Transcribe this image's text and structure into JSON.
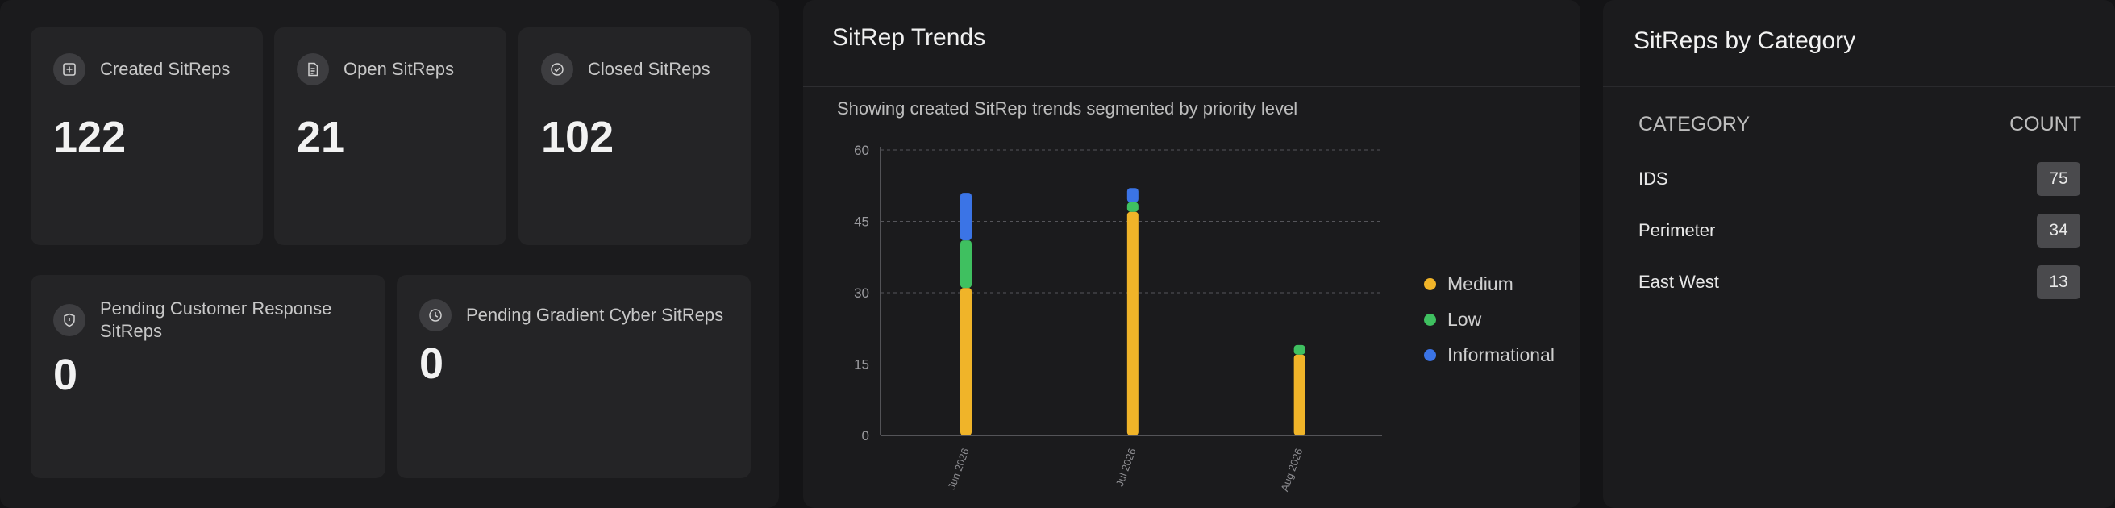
{
  "stats": {
    "created": {
      "label": "Created SitReps",
      "value": "122",
      "icon": "plus-square-icon"
    },
    "open": {
      "label": "Open SitReps",
      "value": "21",
      "icon": "document-icon"
    },
    "closed": {
      "label": "Closed SitReps",
      "value": "102",
      "icon": "check-circle-icon"
    },
    "pending_customer": {
      "label": "Pending Customer Response SitReps",
      "value": "0",
      "icon": "shield-icon"
    },
    "pending_gradient": {
      "label": "Pending Gradient Cyber SitReps",
      "value": "0",
      "icon": "clock-icon"
    }
  },
  "trends": {
    "title": "SitRep Trends",
    "subtitle": "Showing created SitRep trends segmented by priority level"
  },
  "chart_data": {
    "type": "bar",
    "stacked": true,
    "categories": [
      "Jun 2026",
      "Jul 2026",
      "Aug 2026"
    ],
    "series": [
      {
        "name": "Medium",
        "color": "#f0b429",
        "values": [
          31,
          47,
          17
        ]
      },
      {
        "name": "Low",
        "color": "#3fc060",
        "values": [
          10,
          2,
          2
        ]
      },
      {
        "name": "Informational",
        "color": "#3b74e6",
        "values": [
          10,
          3,
          0
        ]
      }
    ],
    "yticks": [
      "0",
      "15",
      "30",
      "45",
      "60"
    ],
    "ylim": [
      0,
      60
    ],
    "grid": true,
    "legend": "right"
  },
  "category": {
    "title": "SitReps by Category",
    "col_category": "CATEGORY",
    "col_count": "COUNT",
    "rows": [
      {
        "name": "IDS",
        "count": "75"
      },
      {
        "name": "Perimeter",
        "count": "34"
      },
      {
        "name": "East West",
        "count": "13"
      }
    ]
  }
}
